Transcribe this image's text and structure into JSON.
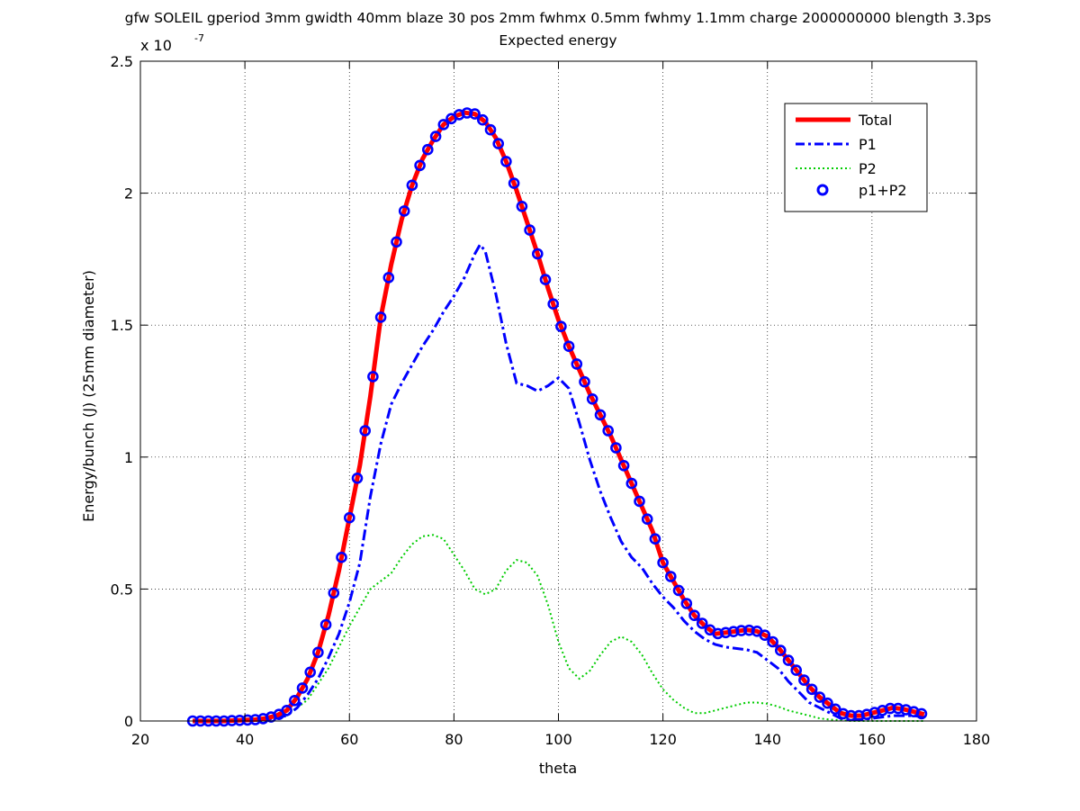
{
  "chart_data": {
    "type": "line",
    "title": "gfw SOLEIL gperiod 3mm gwidth 40mm blaze 30 pos 2mm fwhmx 0.5mm fwhmy 1.1mm charge 2000000000 blength 3.3ps",
    "subtitle": "Expected energy",
    "xlabel": "theta",
    "ylabel": "Energy/bunch (J) (25mm diameter)",
    "y_exponent_label": "x 10",
    "y_exponent_power": "-7",
    "xlim": [
      20,
      180
    ],
    "ylim": [
      0,
      2.5
    ],
    "xticks": [
      20,
      40,
      60,
      80,
      100,
      120,
      140,
      160,
      180
    ],
    "yticks": [
      0,
      0.5,
      1,
      1.5,
      2,
      2.5
    ],
    "xtick_labels": [
      "20",
      "40",
      "60",
      "80",
      "100",
      "120",
      "140",
      "160",
      "180"
    ],
    "ytick_labels": [
      "0",
      "0.5",
      "1",
      "1.5",
      "2",
      "2.5"
    ],
    "grid": true,
    "legend_position": "top-right",
    "series": [
      {
        "name": "Total",
        "color": "#ff0000",
        "style": "solid-thick",
        "x": [
          30,
          36,
          42,
          44,
          46,
          48,
          50,
          52,
          54,
          56,
          58,
          60,
          62,
          64,
          66,
          68,
          70,
          72,
          74,
          76,
          78,
          80,
          82,
          84,
          86,
          88,
          90,
          92,
          94,
          96,
          98,
          100,
          102,
          104,
          106,
          108,
          110,
          112,
          114,
          116,
          118,
          120,
          122,
          124,
          126,
          128,
          130,
          132,
          134,
          136,
          138,
          140,
          142,
          144,
          146,
          148,
          150,
          152,
          154,
          156,
          158,
          160,
          162,
          164,
          166,
          168,
          170
        ],
        "y": [
          0,
          0,
          0.005,
          0.01,
          0.02,
          0.04,
          0.09,
          0.16,
          0.26,
          0.4,
          0.57,
          0.77,
          0.97,
          1.23,
          1.53,
          1.73,
          1.9,
          2.03,
          2.13,
          2.2,
          2.26,
          2.29,
          2.305,
          2.3,
          2.27,
          2.21,
          2.12,
          2.01,
          1.89,
          1.77,
          1.64,
          1.52,
          1.42,
          1.33,
          1.24,
          1.16,
          1.08,
          0.99,
          0.9,
          0.81,
          0.72,
          0.6,
          0.53,
          0.46,
          0.4,
          0.36,
          0.33,
          0.335,
          0.34,
          0.345,
          0.34,
          0.32,
          0.28,
          0.23,
          0.18,
          0.13,
          0.09,
          0.06,
          0.03,
          0.02,
          0.02,
          0.03,
          0.04,
          0.05,
          0.045,
          0.035,
          0.025
        ]
      },
      {
        "name": "P1",
        "color": "#0000ff",
        "style": "dashdot",
        "x": [
          30,
          40,
          44,
          48,
          50,
          52,
          54,
          56,
          58,
          60,
          62,
          64,
          66,
          68,
          70,
          72,
          74,
          76,
          78,
          80,
          82,
          84,
          85,
          86,
          88,
          90,
          92,
          94,
          96,
          98,
          100,
          102,
          104,
          106,
          108,
          110,
          112,
          114,
          116,
          118,
          120,
          122,
          124,
          126,
          128,
          130,
          132,
          134,
          136,
          138,
          140,
          142,
          144,
          146,
          148,
          150,
          152,
          154,
          156,
          158,
          160,
          164,
          168,
          170
        ],
        "y": [
          0,
          0,
          0.005,
          0.02,
          0.05,
          0.1,
          0.16,
          0.24,
          0.33,
          0.45,
          0.6,
          0.85,
          1.05,
          1.2,
          1.28,
          1.35,
          1.42,
          1.48,
          1.55,
          1.61,
          1.68,
          1.77,
          1.805,
          1.78,
          1.62,
          1.43,
          1.28,
          1.27,
          1.25,
          1.27,
          1.3,
          1.26,
          1.13,
          0.99,
          0.87,
          0.77,
          0.68,
          0.62,
          0.58,
          0.52,
          0.47,
          0.43,
          0.38,
          0.34,
          0.31,
          0.29,
          0.28,
          0.275,
          0.27,
          0.26,
          0.23,
          0.2,
          0.15,
          0.11,
          0.07,
          0.05,
          0.03,
          0.01,
          0.005,
          0.005,
          0.01,
          0.02,
          0.02,
          0.015
        ]
      },
      {
        "name": "P2",
        "color": "#00cc00",
        "style": "dotted",
        "x": [
          30,
          44,
          48,
          52,
          56,
          60,
          62,
          64,
          66,
          68,
          70,
          72,
          74,
          76,
          78,
          80,
          82,
          84,
          86,
          88,
          90,
          92,
          94,
          96,
          98,
          100,
          102,
          104,
          106,
          108,
          110,
          112,
          114,
          116,
          118,
          120,
          122,
          124,
          126,
          128,
          130,
          132,
          134,
          136,
          138,
          140,
          142,
          144,
          146,
          148,
          150,
          152,
          154,
          156,
          158,
          160,
          164,
          168,
          170
        ],
        "y": [
          0,
          0,
          0.02,
          0.08,
          0.2,
          0.36,
          0.43,
          0.5,
          0.53,
          0.56,
          0.62,
          0.67,
          0.7,
          0.705,
          0.69,
          0.63,
          0.57,
          0.5,
          0.48,
          0.5,
          0.57,
          0.61,
          0.6,
          0.55,
          0.44,
          0.3,
          0.2,
          0.16,
          0.19,
          0.25,
          0.3,
          0.32,
          0.3,
          0.25,
          0.18,
          0.12,
          0.08,
          0.05,
          0.03,
          0.03,
          0.04,
          0.05,
          0.06,
          0.07,
          0.07,
          0.065,
          0.055,
          0.04,
          0.03,
          0.02,
          0.01,
          0.005,
          0.003,
          0,
          0,
          0,
          0,
          0,
          0
        ]
      },
      {
        "name": "p1+P2",
        "color": "#0000ff",
        "style": "circle-markers"
      }
    ]
  }
}
